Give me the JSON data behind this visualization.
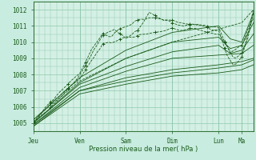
{
  "title": "",
  "xlabel": "Pression niveau de la mer( hPa )",
  "bg_color": "#c8ece0",
  "plot_bg_color": "#d4f0e4",
  "grid_color": "#90c8b0",
  "line_color": "#1a5c1a",
  "ylim": [
    1004.5,
    1012.5
  ],
  "xlim": [
    0,
    114
  ],
  "yticks": [
    1005,
    1006,
    1007,
    1008,
    1009,
    1010,
    1011,
    1012
  ],
  "day_lines": [
    0,
    24,
    48,
    72,
    96,
    108
  ],
  "day_labels": [
    "Jeu",
    "Ven",
    "Sam",
    "Dim",
    "Lun",
    "Ma"
  ]
}
